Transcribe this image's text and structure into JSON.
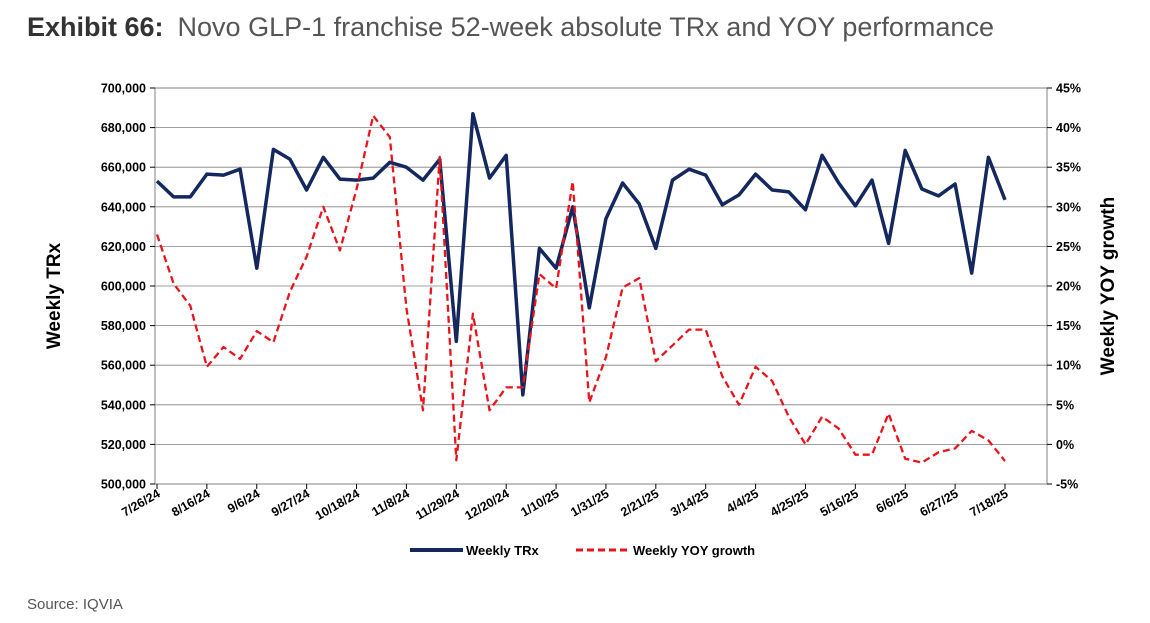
{
  "header": {
    "exhibit_label": "Exhibit 66:",
    "title": "Novo GLP-1 franchise 52-week absolute TRx and YOY performance"
  },
  "footer": {
    "source": "Source: IQVIA"
  },
  "colors": {
    "trx": "#14285f",
    "yoy": "#e8141c",
    "grid": "#808080"
  },
  "chart_data": {
    "type": "line",
    "title": "Novo GLP-1 franchise 52-week absolute TRx and YOY performance",
    "ylabel": "Weekly TRx",
    "y2label": "Weekly YOY growth",
    "ylim": [
      500000,
      700000
    ],
    "y2lim": [
      -5,
      45
    ],
    "yticks": [
      "700,000",
      "680,000",
      "660,000",
      "640,000",
      "620,000",
      "600,000",
      "580,000",
      "560,000",
      "540,000",
      "520,000",
      "500,000"
    ],
    "y2ticks": [
      "45%",
      "40%",
      "35%",
      "30%",
      "25%",
      "20%",
      "15%",
      "10%",
      "5%",
      "0%",
      "-5%"
    ],
    "grid": true,
    "legend_position": "bottom",
    "x_tick_labels": [
      "7/26/24",
      "8/16/24",
      "9/6/24",
      "9/27/24",
      "10/18/24",
      "11/8/24",
      "11/29/24",
      "12/20/24",
      "1/10/25",
      "1/31/25",
      "2/21/25",
      "3/14/25",
      "4/4/25",
      "4/25/25",
      "5/16/25",
      "6/6/25",
      "6/27/25",
      "7/18/25"
    ],
    "series": [
      {
        "name": "Weekly TRx",
        "axis": "left",
        "style": "solid",
        "values": [
          653000,
          645000,
          645000,
          656500,
          656000,
          659000,
          609000,
          669000,
          664000,
          648500,
          665000,
          654000,
          653500,
          654500,
          662500,
          660000,
          653500,
          664000,
          572000,
          687000,
          654500,
          666000,
          545000,
          619000,
          609000,
          640000,
          589000,
          634000,
          652000,
          641500,
          619000,
          653500,
          659000,
          656000,
          641000,
          646000,
          656500,
          648500,
          647500,
          638500,
          666000,
          652000,
          640500,
          653500,
          621500,
          668500,
          649000,
          645500,
          651500,
          606500,
          665000,
          643500
        ]
      },
      {
        "name": "Weekly YOY growth",
        "axis": "right",
        "style": "dashed",
        "values": [
          26.5,
          20.3,
          17.5,
          9.8,
          12.3,
          10.8,
          14.3,
          12.9,
          19.3,
          23.7,
          30,
          24.5,
          32.2,
          41.5,
          38.8,
          17.2,
          4.3,
          36.3,
          -2,
          16.5,
          4.3,
          7.2,
          7.2,
          21.5,
          19.7,
          33.2,
          5.3,
          11,
          19.8,
          21,
          10.5,
          12.5,
          14.5,
          14.5,
          8.6,
          5,
          9.8,
          8,
          3.5,
          0,
          3.5,
          2,
          -1.3,
          -1.3,
          3.9,
          -1.8,
          -2.3,
          -1,
          -0.5,
          1.7,
          0.5,
          -2.1
        ]
      }
    ]
  }
}
